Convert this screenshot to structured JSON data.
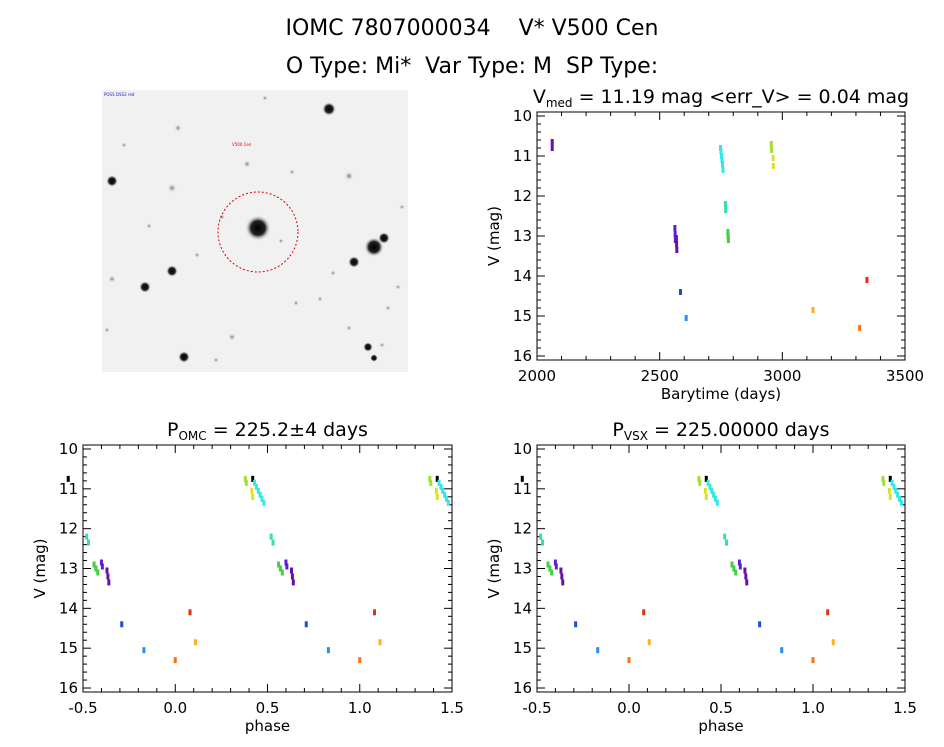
{
  "header": {
    "title_line1": "IOMC 7807000034    V* V500 Cen",
    "title_line2": "O Type: Mi*  Var Type: M  SP Type:"
  },
  "finder": {
    "label_top": "POSS DSS2 red",
    "label_center": "V500 Cen",
    "colors": {
      "circle": "#e00000",
      "label_center": "#e00000"
    }
  },
  "chart_data": [
    {
      "id": "lightcurve",
      "type": "scatter",
      "title_text": "V",
      "title_sub": "med",
      "title_rest": " = 11.19 mag <err_V> = 0.04 mag",
      "xlabel": "Barytime (days)",
      "ylabel": "V (mag)",
      "xlim": [
        2000,
        3500
      ],
      "ylim": [
        16.1,
        9.9
      ],
      "y_inverted": true,
      "xticks": [
        2000,
        2500,
        3000,
        3500
      ],
      "yticks": [
        10,
        11,
        12,
        13,
        14,
        15,
        16
      ],
      "series": [
        {
          "color": "#6a0dad",
          "x": [
            2062,
            2062
          ],
          "y": [
            10.65,
            10.8
          ]
        },
        {
          "color": "#5a20d8",
          "x": [
            2562,
            2563,
            2564
          ],
          "y": [
            12.8,
            12.95,
            13.1
          ]
        },
        {
          "color": "#6a0dad",
          "x": [
            2568,
            2569,
            2570
          ],
          "y": [
            13.05,
            13.2,
            13.35
          ]
        },
        {
          "color": "#1a4ed8",
          "x": [
            2585
          ],
          "y": [
            14.4
          ]
        },
        {
          "color": "#2090ff",
          "x": [
            2608
          ],
          "y": [
            15.05
          ]
        },
        {
          "color": "#30e8e8",
          "x": [
            2748,
            2750,
            2752,
            2754,
            2756,
            2758
          ],
          "y": [
            10.8,
            10.9,
            11.0,
            11.1,
            11.2,
            11.35
          ]
        },
        {
          "color": "#30e0b0",
          "x": [
            2768,
            2769
          ],
          "y": [
            12.2,
            12.35
          ]
        },
        {
          "color": "#40d040",
          "x": [
            2778,
            2779,
            2780
          ],
          "y": [
            12.9,
            13.0,
            13.1
          ]
        },
        {
          "color": "#a0e030",
          "x": [
            2955,
            2956
          ],
          "y": [
            10.7,
            10.85
          ]
        },
        {
          "color": "#e0e020",
          "x": [
            2962,
            2963
          ],
          "y": [
            11.05,
            11.25
          ]
        },
        {
          "color": "#ffb020",
          "x": [
            3125
          ],
          "y": [
            14.85
          ]
        },
        {
          "color": "#ff7010",
          "x": [
            3315
          ],
          "y": [
            15.3
          ]
        },
        {
          "color": "#e03010",
          "x": [
            3345
          ],
          "y": [
            14.1
          ]
        }
      ]
    },
    {
      "id": "phase_omc",
      "type": "scatter",
      "title_text": "P",
      "title_sub": "OMC",
      "title_rest": " = 225.2±4 days",
      "xlabel": "phase",
      "ylabel": "V (mag)",
      "xlim": [
        -0.5,
        1.5
      ],
      "ylim": [
        16.1,
        9.9
      ],
      "y_inverted": true,
      "xticks": [
        -0.5,
        0.0,
        0.5,
        1.0,
        1.5
      ],
      "yticks": [
        10,
        11,
        12,
        13,
        14,
        15,
        16
      ],
      "series": [
        {
          "color": "#000000",
          "x": [
            -0.58,
            0.42,
            1.42
          ],
          "y": [
            10.75,
            10.75,
            10.75
          ]
        },
        {
          "color": "#30e0b0",
          "x": [
            -0.48,
            -0.47,
            0.52,
            0.53
          ],
          "y": [
            12.2,
            12.35,
            12.2,
            12.35
          ]
        },
        {
          "color": "#40d040",
          "x": [
            -0.44,
            -0.43,
            -0.42,
            0.56,
            0.57,
            0.58
          ],
          "y": [
            12.9,
            13.0,
            13.1,
            12.9,
            13.0,
            13.1
          ]
        },
        {
          "color": "#5a20d8",
          "x": [
            -0.4,
            -0.395,
            0.6,
            0.605
          ],
          "y": [
            12.85,
            12.95,
            12.85,
            12.95
          ]
        },
        {
          "color": "#6a0dad",
          "x": [
            -0.37,
            -0.365,
            -0.36,
            0.63,
            0.635,
            0.64
          ],
          "y": [
            13.05,
            13.2,
            13.35,
            13.05,
            13.2,
            13.35
          ]
        },
        {
          "color": "#1a4ed8",
          "x": [
            -0.29,
            0.71
          ],
          "y": [
            14.4,
            14.4
          ]
        },
        {
          "color": "#2090ff",
          "x": [
            -0.17,
            0.83
          ],
          "y": [
            15.05,
            15.05
          ]
        },
        {
          "color": "#ff7010",
          "x": [
            0.0,
            1.0
          ],
          "y": [
            15.3,
            15.3
          ]
        },
        {
          "color": "#e03010",
          "x": [
            0.08,
            1.08
          ],
          "y": [
            14.1,
            14.1
          ]
        },
        {
          "color": "#ffb020",
          "x": [
            0.11,
            1.11
          ],
          "y": [
            14.85,
            14.85
          ]
        },
        {
          "color": "#a0e030",
          "x": [
            0.38,
            0.385,
            1.38,
            1.385
          ],
          "y": [
            10.75,
            10.85,
            10.75,
            10.85
          ]
        },
        {
          "color": "#e0e020",
          "x": [
            0.415,
            0.42,
            1.415,
            1.42
          ],
          "y": [
            11.05,
            11.2,
            11.05,
            11.2
          ]
        },
        {
          "color": "#30e8e8",
          "x": [
            0.43,
            0.44,
            0.45,
            0.46,
            0.47,
            0.48,
            1.43,
            1.44,
            1.45,
            1.46,
            1.47,
            1.48
          ],
          "y": [
            10.85,
            10.95,
            11.05,
            11.15,
            11.25,
            11.35,
            10.85,
            10.95,
            11.05,
            11.15,
            11.25,
            11.35
          ]
        }
      ]
    },
    {
      "id": "phase_vsx",
      "type": "scatter",
      "title_text": "P",
      "title_sub": "VSX",
      "title_rest": " = 225.00000 days",
      "xlabel": "phase",
      "ylabel": "V (mag)",
      "xlim": [
        -0.5,
        1.5
      ],
      "ylim": [
        16.1,
        9.9
      ],
      "y_inverted": true,
      "xticks": [
        -0.5,
        0.0,
        0.5,
        1.0,
        1.5
      ],
      "yticks": [
        10,
        11,
        12,
        13,
        14,
        15,
        16
      ],
      "series": [
        {
          "color": "#000000",
          "x": [
            -0.58,
            0.42,
            1.42
          ],
          "y": [
            10.75,
            10.75,
            10.75
          ]
        },
        {
          "color": "#30e0b0",
          "x": [
            -0.48,
            -0.47,
            0.52,
            0.53
          ],
          "y": [
            12.2,
            12.35,
            12.2,
            12.35
          ]
        },
        {
          "color": "#40d040",
          "x": [
            -0.44,
            -0.43,
            -0.42,
            0.56,
            0.57,
            0.58
          ],
          "y": [
            12.9,
            13.0,
            13.1,
            12.9,
            13.0,
            13.1
          ]
        },
        {
          "color": "#5a20d8",
          "x": [
            -0.4,
            -0.395,
            0.6,
            0.605
          ],
          "y": [
            12.85,
            12.95,
            12.85,
            12.95
          ]
        },
        {
          "color": "#6a0dad",
          "x": [
            -0.37,
            -0.365,
            -0.36,
            0.63,
            0.635,
            0.64
          ],
          "y": [
            13.05,
            13.2,
            13.35,
            13.05,
            13.2,
            13.35
          ]
        },
        {
          "color": "#1a4ed8",
          "x": [
            -0.29,
            0.71
          ],
          "y": [
            14.4,
            14.4
          ]
        },
        {
          "color": "#2090ff",
          "x": [
            -0.17,
            0.83
          ],
          "y": [
            15.05,
            15.05
          ]
        },
        {
          "color": "#ff7010",
          "x": [
            0.0,
            1.0
          ],
          "y": [
            15.3,
            15.3
          ]
        },
        {
          "color": "#e03010",
          "x": [
            0.08,
            1.08
          ],
          "y": [
            14.1,
            14.1
          ]
        },
        {
          "color": "#ffb020",
          "x": [
            0.11,
            1.11
          ],
          "y": [
            14.85,
            14.85
          ]
        },
        {
          "color": "#a0e030",
          "x": [
            0.38,
            0.385,
            1.38,
            1.385
          ],
          "y": [
            10.75,
            10.85,
            10.75,
            10.85
          ]
        },
        {
          "color": "#e0e020",
          "x": [
            0.415,
            0.42,
            1.415,
            1.42
          ],
          "y": [
            11.05,
            11.2,
            11.05,
            11.2
          ]
        },
        {
          "color": "#30e8e8",
          "x": [
            0.43,
            0.44,
            0.45,
            0.46,
            0.47,
            0.48,
            1.43,
            1.44,
            1.45,
            1.46,
            1.47,
            1.48
          ],
          "y": [
            10.85,
            10.95,
            11.05,
            11.15,
            11.25,
            11.35,
            10.85,
            10.95,
            11.05,
            11.15,
            11.25,
            11.35
          ]
        }
      ]
    }
  ]
}
